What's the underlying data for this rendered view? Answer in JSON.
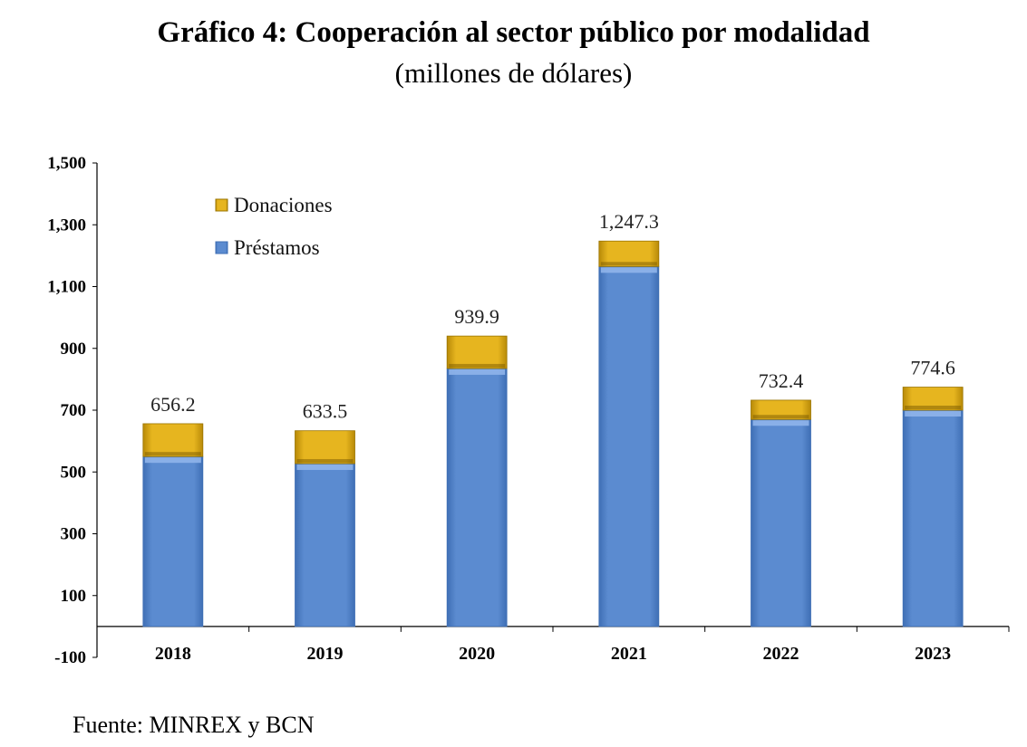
{
  "title": "Gráfico 4: Cooperación al sector público por modalidad",
  "subtitle": "(millones de dólares)",
  "source": "Fuente: MINREX y BCN",
  "colors": {
    "prestamos": "#5b8bd0",
    "prestamos_edge": "#3f6fb5",
    "donaciones": "#e0b01e",
    "donaciones_edge": "#9a7400",
    "axis": "#000000"
  },
  "chart_data": {
    "type": "bar",
    "stacked": true,
    "categories": [
      "2018",
      "2019",
      "2020",
      "2021",
      "2022",
      "2023"
    ],
    "series": [
      {
        "name": "Préstamos",
        "values": [
          550,
          527,
          835,
          1165,
          670,
          700
        ]
      },
      {
        "name": "Donaciones",
        "values": [
          106.2,
          106.5,
          104.9,
          82.3,
          62.4,
          74.6
        ]
      }
    ],
    "totals": [
      656.2,
      633.5,
      939.9,
      1247.3,
      732.4,
      774.6
    ],
    "total_labels": [
      "656.2",
      "633.5",
      "939.9",
      "1,247.3",
      "732.4",
      "774.6"
    ],
    "ylim": [
      -100,
      1500
    ],
    "yticks": [
      1500,
      1300,
      1100,
      900,
      700,
      500,
      300,
      100,
      -100
    ],
    "ytick_labels": [
      "1,500",
      "1,300",
      "1,100",
      "900",
      "700",
      "500",
      "300",
      "100",
      "-100"
    ],
    "legend": {
      "placement": "top-left",
      "order": [
        "Donaciones",
        "Préstamos"
      ]
    },
    "grid": false
  }
}
